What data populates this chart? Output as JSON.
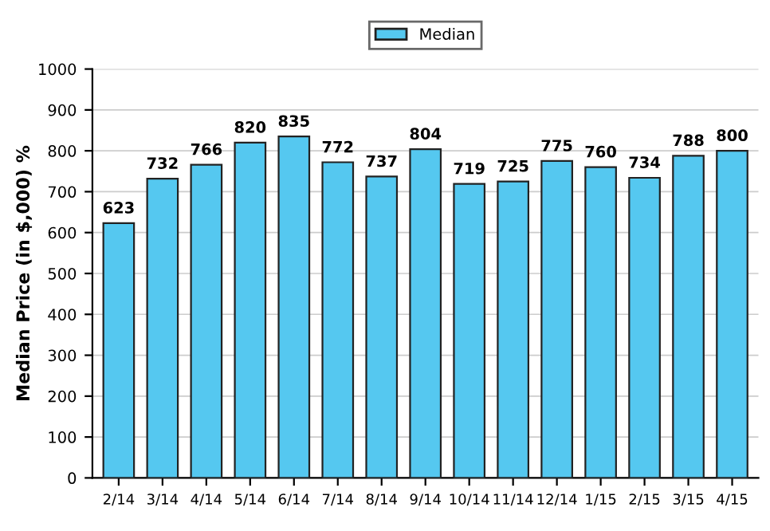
{
  "chart_data": {
    "type": "bar",
    "ylabel": "Median Price (in $,000) %",
    "categories": [
      "2/14",
      "3/14",
      "4/14",
      "5/14",
      "6/14",
      "7/14",
      "8/14",
      "9/14",
      "10/14",
      "11/14",
      "12/14",
      "1/15",
      "2/15",
      "3/15",
      "4/15"
    ],
    "series": [
      {
        "name": "Median",
        "color": "#55c8f0",
        "values": [
          623,
          732,
          766,
          820,
          835,
          772,
          737,
          804,
          719,
          725,
          775,
          760,
          734,
          788,
          800
        ]
      }
    ],
    "ylim": [
      0,
      1000
    ],
    "yticks": [
      0,
      100,
      200,
      300,
      400,
      500,
      600,
      700,
      800,
      900,
      1000
    ],
    "grid": "y",
    "legend": "top",
    "data_labels": true
  }
}
